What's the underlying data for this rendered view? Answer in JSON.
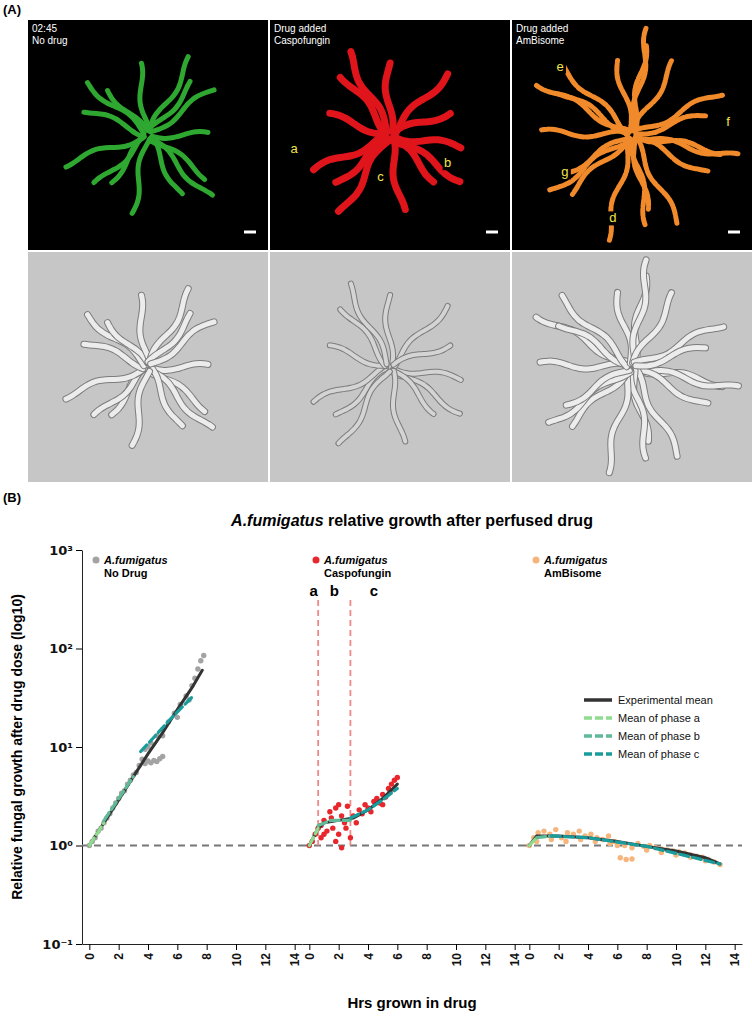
{
  "panel_a": {
    "label": "(A)",
    "images": [
      {
        "overlay": [
          "02:45",
          "No drug"
        ],
        "color": "#2fa831",
        "letters": []
      },
      {
        "overlay": [
          "Drug added",
          "Caspofungin"
        ],
        "color": "#e0151b",
        "letters": [
          "a",
          "c",
          "b"
        ]
      },
      {
        "overlay": [
          "Drug added",
          "AmBisome"
        ],
        "color": "#f08a2a",
        "letters": [
          "e",
          "f",
          "g",
          "d"
        ]
      }
    ]
  },
  "figure": {
    "label": "(B)",
    "title": "A.fumigatus relative growth after perfused drug",
    "y_label": "Relative fungal growth after drug dose (log10)",
    "x_label": "Hrs grown in drug"
  },
  "chart_data": [
    {
      "type": "scatter",
      "log": "y",
      "xlim": [
        -0.5,
        14.5
      ],
      "xticks": [
        0,
        2,
        4,
        6,
        8,
        10,
        12,
        14
      ],
      "ylim": [
        0.1,
        1000
      ],
      "yticks": [
        {
          "value": 0.1,
          "label": "10⁻¹"
        },
        {
          "value": 1,
          "label": "10⁰"
        },
        {
          "value": 10,
          "label": "10¹"
        },
        {
          "value": 100,
          "label": "10²"
        },
        {
          "value": 1000,
          "label": "10³"
        }
      ],
      "hline": 1,
      "series": [
        {
          "name": "A.fumigatus No Drug",
          "type": "scatter",
          "marker": "circle",
          "color": "#a3a3a3",
          "x": [
            0,
            0.2,
            0.4,
            0.6,
            0.8,
            1,
            1.2,
            1.4,
            1.6,
            1.8,
            2,
            2.2,
            2.4,
            2.6,
            2.8,
            3,
            3.2,
            3.4,
            3.6,
            3.8,
            4,
            4.2,
            4.4,
            4.6,
            4.8,
            5,
            3.8,
            4.2,
            4.6,
            5,
            5.4,
            5.8,
            6.2,
            6.6,
            7,
            7.2,
            7.4,
            7.6,
            7.8,
            4,
            5,
            6,
            6.8
          ],
          "values": [
            1,
            1.1,
            1.2,
            1.4,
            1.5,
            1.7,
            1.9,
            2.1,
            2.4,
            2.7,
            3,
            3.4,
            3.6,
            4.2,
            4.6,
            5.2,
            5.5,
            6.5,
            7.5,
            6.8,
            7.2,
            6.9,
            7.3,
            7.1,
            7.6,
            8,
            9.5,
            11,
            13,
            15,
            18,
            22,
            27,
            33,
            42,
            50,
            62,
            75,
            85,
            10,
            13,
            20,
            30
          ]
        },
        {
          "type": "line",
          "line_style": "solid",
          "color": "#333333",
          "x": [
            0,
            1,
            2,
            3,
            4,
            5,
            6,
            7,
            7.7
          ],
          "values": [
            1,
            1.7,
            2.9,
            5,
            8.5,
            14,
            24,
            40,
            60
          ]
        },
        {
          "type": "line",
          "line_style": "dashed",
          "color": "#8fdc8f",
          "x": [
            0,
            0.5,
            1
          ],
          "values": [
            1,
            1.3,
            1.7
          ]
        },
        {
          "type": "line",
          "line_style": "dashed",
          "color": "#5fba98",
          "x": [
            1,
            2,
            3
          ],
          "values": [
            1.8,
            3,
            5
          ]
        },
        {
          "type": "line",
          "line_style": "dashed",
          "color": "#1a9c9c",
          "x": [
            3.5,
            4.5,
            5.5,
            6.5,
            7
          ],
          "values": [
            9,
            13,
            19,
            27,
            32
          ]
        }
      ]
    },
    {
      "type": "scatter",
      "log": "y",
      "tick_labels": "x",
      "xlim": [
        -0.5,
        14.5
      ],
      "xticks": [
        0,
        2,
        4,
        6,
        8,
        10,
        12,
        14
      ],
      "ylim": [
        0.1,
        1000
      ],
      "hline": 1,
      "phase_boundaries": [
        0.6,
        2.8
      ],
      "phase_labels": [
        "a",
        "b",
        "c"
      ],
      "series": [
        {
          "name": "A.fumigatus Caspofungin",
          "type": "scatter",
          "marker": "circle",
          "color": "#e8262b",
          "x": [
            0,
            0.2,
            0.4,
            0.6,
            0.8,
            1,
            1.2,
            1.4,
            1.6,
            1.8,
            2,
            2.2,
            2.4,
            2.6,
            2.8,
            1,
            1.5,
            2,
            2.5,
            3,
            3.2,
            3.4,
            3.6,
            3.8,
            4,
            4.2,
            4.4,
            4.6,
            4.8,
            5,
            5.2,
            5.4,
            5.6,
            5.8,
            6,
            5,
            5.5,
            1.8,
            2.2,
            0.8
          ],
          "values": [
            1,
            1.1,
            1.3,
            1.5,
            1.6,
            1.8,
            1.4,
            2.2,
            1.5,
            2.4,
            1.3,
            2,
            1.7,
            2.5,
            1.2,
            1.3,
            1.9,
            2.6,
            1.5,
            2,
            1.7,
            2.3,
            2.1,
            2.6,
            2.4,
            2.2,
            2.8,
            3,
            2.7,
            3.3,
            3.1,
            3.8,
            4.2,
            4.6,
            4.9,
            2.6,
            3.5,
            1.1,
            0.95,
            1.2
          ]
        },
        {
          "type": "line",
          "line_style": "solid",
          "color": "#333333",
          "x": [
            0,
            0.6,
            1,
            2,
            3,
            4,
            5,
            6
          ],
          "values": [
            1,
            1.5,
            1.7,
            1.8,
            1.9,
            2.3,
            3,
            4.2
          ]
        },
        {
          "type": "line",
          "line_style": "dashed",
          "color": "#8fdc8f",
          "x": [
            0,
            0.6
          ],
          "values": [
            1,
            1.5
          ]
        },
        {
          "type": "line",
          "line_style": "dashed",
          "color": "#5fba98",
          "x": [
            0.6,
            1.5,
            2.8
          ],
          "values": [
            1.6,
            1.8,
            1.8
          ]
        },
        {
          "type": "line",
          "line_style": "dashed",
          "color": "#1a9c9c",
          "x": [
            2.8,
            4,
            5,
            6
          ],
          "values": [
            1.9,
            2.3,
            2.9,
            3.8
          ]
        }
      ]
    },
    {
      "type": "scatter",
      "log": "y",
      "tick_labels": "x",
      "xlim": [
        -0.5,
        14.5
      ],
      "xticks": [
        0,
        2,
        4,
        6,
        8,
        10,
        12,
        14
      ],
      "ylim": [
        0.1,
        1000
      ],
      "hline": 1,
      "legend": "right",
      "series": [
        {
          "name": "A.fumigatus AmBisome",
          "type": "scatter",
          "marker": "circle",
          "color": "#f5b57c",
          "x": [
            0,
            0.3,
            0.6,
            1,
            1.4,
            1.8,
            2.2,
            2.6,
            3,
            3.4,
            3.8,
            4.2,
            4.6,
            5,
            5.4,
            5.8,
            6.2,
            6.6,
            7,
            7.4,
            7.8,
            8.2,
            8.6,
            9,
            9.4,
            9.8,
            10.2,
            10.6,
            11,
            11.4,
            11.8,
            12.2,
            12.6,
            13,
            0.5,
            1.5,
            2.5,
            3.5,
            4.5,
            5.5,
            6,
            6.5,
            7,
            8,
            9,
            10,
            11,
            12
          ],
          "values": [
            1,
            1.2,
            1.35,
            1.4,
            1.3,
            1.45,
            1.2,
            1.35,
            1.3,
            1.4,
            1.25,
            1.3,
            1.2,
            1.15,
            1.25,
            1.1,
            0.75,
            0.72,
            0.73,
            1.05,
            0.98,
            1.0,
            0.95,
            0.92,
            0.9,
            0.88,
            0.86,
            0.84,
            0.8,
            0.78,
            0.76,
            0.72,
            0.68,
            0.64,
            1.1,
            1.15,
            1.1,
            1.15,
            1.1,
            1.05,
            1.0,
            1.0,
            0.95,
            0.9,
            0.85,
            0.8,
            0.76,
            0.7
          ]
        },
        {
          "name": "Experimental mean",
          "type": "line",
          "line_style": "solid",
          "color": "#333333",
          "x": [
            0,
            0.5,
            2,
            4,
            6,
            8,
            10,
            12,
            13
          ],
          "values": [
            1,
            1.25,
            1.25,
            1.2,
            1.1,
            0.98,
            0.88,
            0.75,
            0.65
          ]
        },
        {
          "name": "Mean of phase a",
          "type": "line",
          "line_style": "dashed",
          "color": "#8fdc8f",
          "x": [
            0,
            0.5
          ],
          "values": [
            1,
            1.2
          ]
        },
        {
          "name": "Mean of phase b",
          "type": "line",
          "line_style": "dashed",
          "color": "#5fba98",
          "x": [
            0.5,
            1.5
          ],
          "values": [
            1.2,
            1.25
          ]
        },
        {
          "name": "Mean of phase c",
          "type": "line",
          "line_style": "dashed",
          "color": "#1a9c9c",
          "x": [
            1.5,
            4,
            8,
            13
          ],
          "values": [
            1.25,
            1.2,
            0.98,
            0.65
          ]
        }
      ]
    }
  ]
}
